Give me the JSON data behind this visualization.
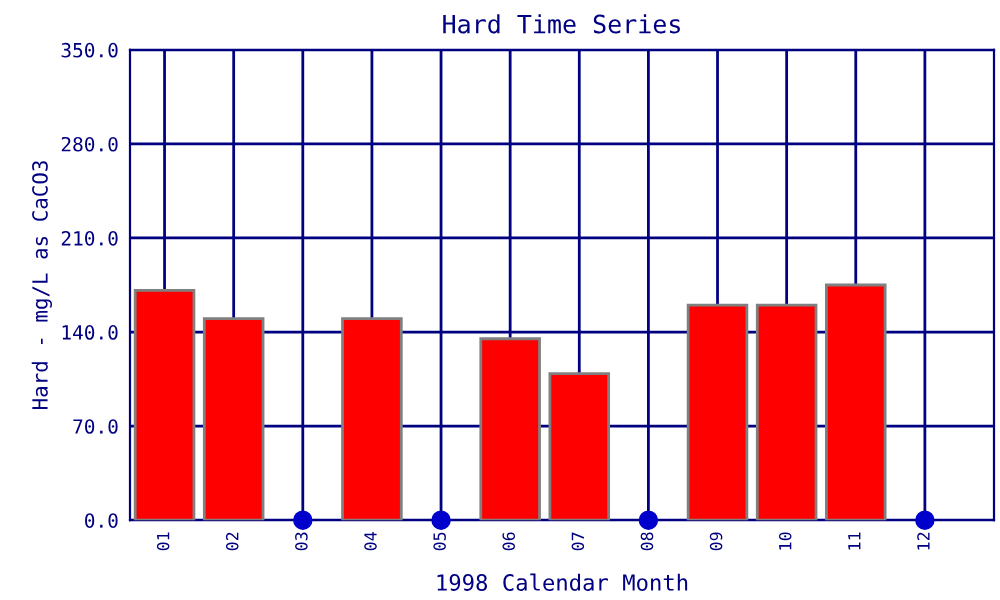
{
  "chart_data": {
    "type": "bar",
    "title": "Hard Time Series",
    "xlabel": "1998 Calendar Month",
    "ylabel": "Hard - mg/L as CaCO3",
    "categories": [
      "01",
      "02",
      "03",
      "04",
      "05",
      "06",
      "07",
      "08",
      "09",
      "10",
      "11",
      "12"
    ],
    "series": [
      {
        "color": "#ff0000",
        "values": [
          171,
          150,
          null,
          150,
          null,
          135,
          109,
          null,
          160,
          160,
          175,
          null
        ]
      },
      {
        "type": "scatter",
        "color": "#0000cc",
        "marker": "circle",
        "values": [
          null,
          null,
          0,
          null,
          0,
          null,
          null,
          0,
          null,
          null,
          null,
          0
        ]
      }
    ],
    "ylim": [
      0,
      350
    ],
    "yticks": [
      {
        "value": 0,
        "label": "0.0"
      },
      {
        "value": 70,
        "label": "70.0"
      },
      {
        "value": 140,
        "label": "140.0"
      },
      {
        "value": 210,
        "label": "210.0"
      },
      {
        "value": 280,
        "label": "280.0"
      },
      {
        "value": 350,
        "label": "350.0"
      }
    ],
    "grid": true,
    "legend": false
  }
}
